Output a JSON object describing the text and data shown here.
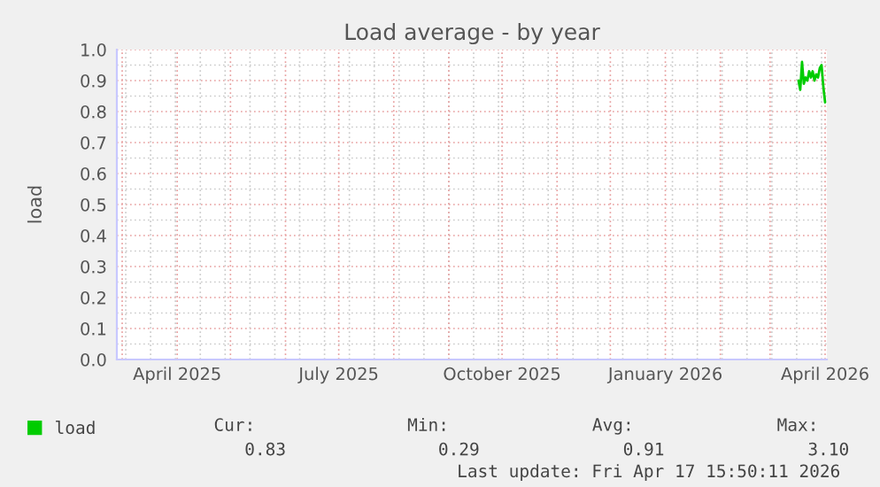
{
  "chart_data": {
    "type": "line",
    "title": "Load average - by year",
    "ylabel": "load",
    "x": [
      "2026-03-17",
      "2026-03-18",
      "2026-03-19",
      "2026-03-20",
      "2026-03-21",
      "2026-03-22",
      "2026-03-23",
      "2026-03-24",
      "2026-03-25",
      "2026-03-26",
      "2026-03-27",
      "2026-03-28",
      "2026-03-29",
      "2026-03-30",
      "2026-03-31",
      "2026-04-01"
    ],
    "series": [
      {
        "name": "load",
        "color": "#00cc00",
        "values": [
          0.9,
          0.87,
          0.96,
          0.89,
          0.91,
          0.9,
          0.93,
          0.91,
          0.93,
          0.9,
          0.92,
          0.91,
          0.94,
          0.95,
          0.88,
          0.83
        ]
      }
    ],
    "xlim": [
      "2025-02-26",
      "2026-04-02"
    ],
    "xticks": [
      {
        "value": "2025-04-01",
        "label": "April 2025"
      },
      {
        "value": "2025-07-01",
        "label": "July 2025"
      },
      {
        "value": "2025-10-01",
        "label": "October 2025"
      },
      {
        "value": "2026-01-01",
        "label": "January 2026"
      },
      {
        "value": "2026-04-01",
        "label": "April 2026"
      }
    ],
    "ylim": [
      0,
      1.0
    ],
    "yticks": [
      {
        "value": 0,
        "label": "0.0"
      },
      {
        "value": 0.1,
        "label": "0.1"
      },
      {
        "value": 0.2,
        "label": "0.2"
      },
      {
        "value": 0.3,
        "label": "0.3"
      },
      {
        "value": 0.4,
        "label": "0.4"
      },
      {
        "value": 0.5,
        "label": "0.5"
      },
      {
        "value": 0.6,
        "label": "0.6"
      },
      {
        "value": 0.7,
        "label": "0.7"
      },
      {
        "value": 0.8,
        "label": "0.8"
      },
      {
        "value": 0.9,
        "label": "0.9"
      },
      {
        "value": 1.0,
        "label": "1.0"
      }
    ],
    "grid": true,
    "legend": "bottom left",
    "marker": "none",
    "line_style": "solid",
    "annotations": [
      "Cur:",
      "0.83",
      "Min:",
      "0.29",
      "Avg:",
      "0.91",
      "Max:",
      "3.10",
      "Last update: Fri Apr 17 15:50:11 2026"
    ]
  }
}
